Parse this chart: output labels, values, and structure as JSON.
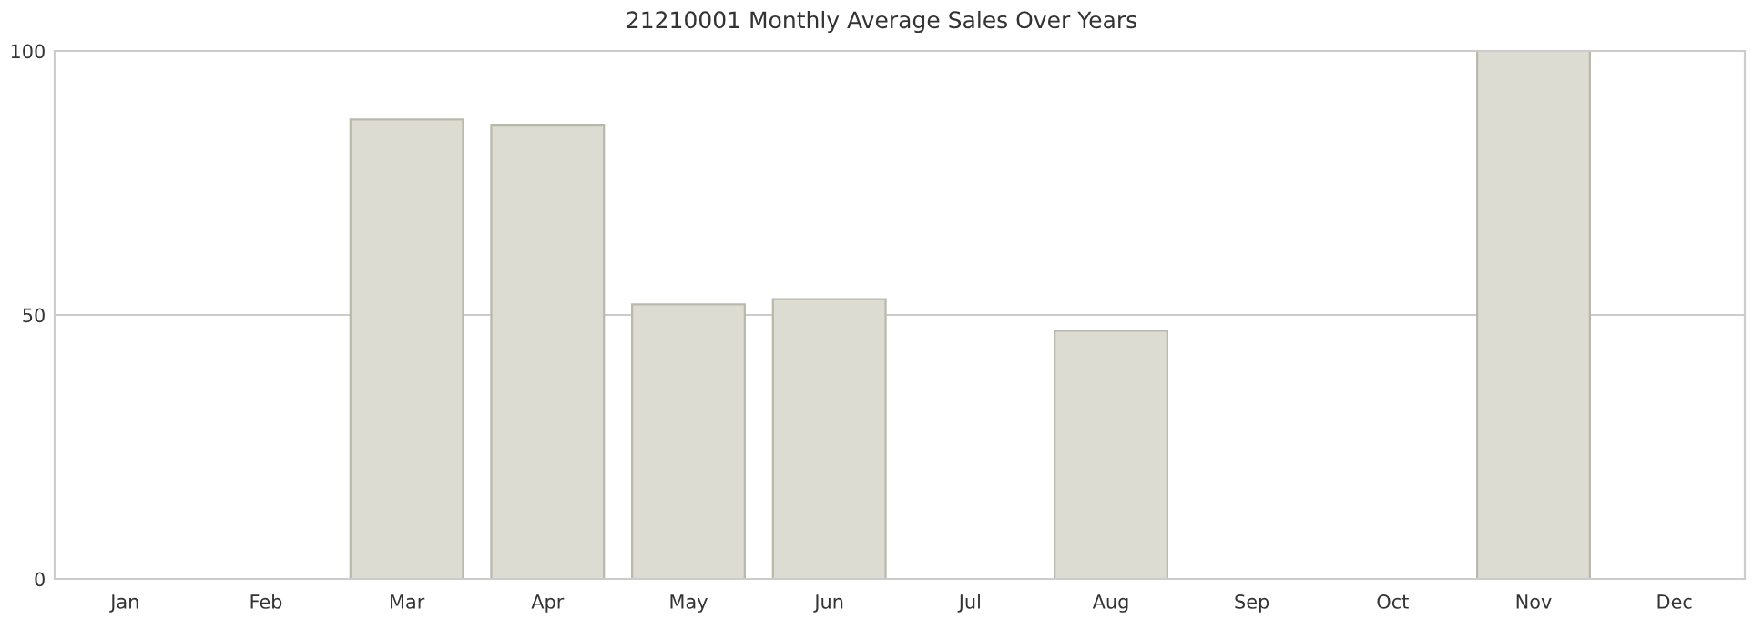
{
  "chart_data": {
    "type": "bar",
    "title": "21210001 Monthly Average Sales Over Years",
    "categories": [
      "Jan",
      "Feb",
      "Mar",
      "Apr",
      "May",
      "Jun",
      "Jul",
      "Aug",
      "Sep",
      "Oct",
      "Nov",
      "Dec"
    ],
    "values": [
      0,
      0,
      87,
      86,
      52,
      53,
      0,
      47,
      0,
      0,
      100,
      0
    ],
    "color": "#dcdcd2",
    "ylim": [
      0,
      100
    ],
    "yticks": [
      0,
      50,
      100
    ],
    "grid": "y"
  }
}
